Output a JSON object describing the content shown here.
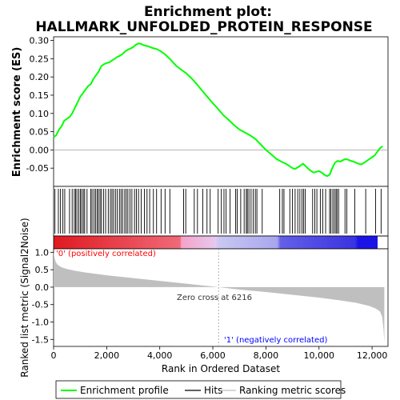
{
  "title_line1": "Enrichment plot:",
  "title_line2": "HALLMARK_UNFOLDED_PROTEIN_RESPONSE",
  "colors": {
    "enrichment": "#00ff00",
    "hits": "#000000",
    "metric_fill": "#bfbfbf",
    "zero_line": "#9e9e9e",
    "pos_label": "#ff0000",
    "neg_label": "#0000ff",
    "bar_red": "#e0191f",
    "bar_pink": "#f4a3c8",
    "bar_lav": "#c9c8f2",
    "bar_blue": "#1c14e6"
  },
  "chart_data": [
    {
      "type": "line",
      "panel": "enrichment",
      "ylabel": "Enrichment score (ES)",
      "ylim": [
        -0.1,
        0.31
      ],
      "xlim": [
        0,
        12600
      ],
      "yticks": [
        "0.30",
        "0.25",
        "0.20",
        "0.15",
        "0.10",
        "0.05",
        "0.00",
        "-0.05"
      ],
      "ytick_values": [
        0.3,
        0.25,
        0.2,
        0.15,
        0.1,
        0.05,
        0.0,
        -0.05
      ],
      "series": [
        {
          "name": "Enrichment profile",
          "x": [
            0,
            100,
            200,
            300,
            400,
            500,
            600,
            700,
            800,
            900,
            1000,
            1100,
            1200,
            1300,
            1400,
            1500,
            1600,
            1700,
            1800,
            1900,
            2000,
            2100,
            2200,
            2300,
            2400,
            2500,
            2600,
            2700,
            2800,
            2900,
            3000,
            3100,
            3200,
            3300,
            3400,
            3500,
            3600,
            3700,
            3800,
            3900,
            4000,
            4200,
            4400,
            4600,
            4800,
            5000,
            5200,
            5400,
            5600,
            5800,
            6000,
            6200,
            6400,
            6600,
            6800,
            7000,
            7200,
            7400,
            7600,
            7800,
            8000,
            8200,
            8400,
            8600,
            8700,
            8800,
            8900,
            9000,
            9100,
            9200,
            9300,
            9400,
            9500,
            9600,
            9700,
            9800,
            9900,
            10000,
            10100,
            10200,
            10300,
            10400,
            10500,
            10600,
            10700,
            10800,
            10900,
            11000,
            11100,
            11200,
            11300,
            11400,
            11500,
            11600,
            11700,
            11800,
            11900,
            12000,
            12100,
            12200,
            12300,
            12400
          ],
          "y": [
            0.035,
            0.04,
            0.055,
            0.065,
            0.08,
            0.085,
            0.09,
            0.1,
            0.115,
            0.13,
            0.145,
            0.155,
            0.165,
            0.175,
            0.18,
            0.195,
            0.205,
            0.215,
            0.23,
            0.235,
            0.238,
            0.24,
            0.245,
            0.25,
            0.255,
            0.258,
            0.263,
            0.27,
            0.275,
            0.278,
            0.282,
            0.288,
            0.292,
            0.29,
            0.287,
            0.285,
            0.283,
            0.28,
            0.278,
            0.276,
            0.272,
            0.262,
            0.248,
            0.232,
            0.22,
            0.21,
            0.196,
            0.18,
            0.162,
            0.145,
            0.128,
            0.112,
            0.095,
            0.082,
            0.068,
            0.056,
            0.048,
            0.04,
            0.03,
            0.015,
            0.0,
            -0.012,
            -0.025,
            -0.033,
            -0.036,
            -0.04,
            -0.045,
            -0.05,
            -0.052,
            -0.048,
            -0.043,
            -0.038,
            -0.045,
            -0.052,
            -0.058,
            -0.062,
            -0.06,
            -0.058,
            -0.062,
            -0.068,
            -0.072,
            -0.068,
            -0.05,
            -0.035,
            -0.03,
            -0.032,
            -0.028,
            -0.025,
            -0.027,
            -0.03,
            -0.032,
            -0.035,
            -0.038,
            -0.04,
            -0.035,
            -0.03,
            -0.025,
            -0.02,
            -0.015,
            -0.005,
            0.005,
            0.01
          ]
        }
      ]
    },
    {
      "type": "scatter",
      "panel": "hits",
      "series": [
        {
          "name": "Hits",
          "x": [
            50,
            180,
            260,
            350,
            420,
            600,
            700,
            780,
            830,
            880,
            950,
            1010,
            1060,
            1120,
            1170,
            1260,
            1400,
            1450,
            1520,
            1580,
            1640,
            1690,
            1750,
            1800,
            1880,
            1960,
            2060,
            2140,
            2200,
            2260,
            2330,
            2400,
            2480,
            2540,
            2600,
            2680,
            2740,
            2800,
            2880,
            2950,
            3050,
            3120,
            3200,
            3300,
            3420,
            3520,
            3620,
            3760,
            3880,
            4050,
            4200,
            4380,
            4900,
            4980,
            5300,
            5420,
            5620,
            5780,
            5900,
            6200,
            6320,
            6420,
            6500,
            6650,
            6860,
            6920,
            7050,
            7180,
            7260,
            7300,
            7360,
            7440,
            7520,
            7600,
            7660,
            7860,
            8520,
            8620,
            8680,
            8900,
            9000,
            9100,
            9200,
            9280,
            9360,
            9420,
            9480,
            9760,
            9840,
            9920,
            10050,
            10140,
            10250,
            10400,
            10450,
            10520,
            10580,
            10640,
            10680,
            10740,
            10980,
            11050,
            11350,
            11760,
            12130,
            12340
          ]
        }
      ]
    },
    {
      "type": "area",
      "panel": "ranked-metric",
      "ylabel": "Ranked list metric (Signal2Noise)",
      "xlabel": "Rank in Ordered Dataset",
      "xlim": [
        0,
        12600
      ],
      "ylim": [
        -1.7,
        1.1
      ],
      "xticks": [
        "0",
        "2,000",
        "4,000",
        "6,000",
        "8,000",
        "10,000",
        "12,000"
      ],
      "xtick_values": [
        0,
        2000,
        4000,
        6000,
        8000,
        10000,
        12000
      ],
      "yticks": [
        "1.0",
        "0.5",
        "0.0",
        "-0.5",
        "-1.0",
        "-1.5"
      ],
      "ytick_values": [
        1.0,
        0.5,
        0.0,
        -0.5,
        -1.0,
        -1.5
      ],
      "series": [
        {
          "name": "Ranking metric scores",
          "x": [
            0,
            30,
            80,
            150,
            300,
            500,
            800,
            1200,
            2000,
            3000,
            4000,
            5000,
            6216,
            7000,
            8000,
            9000,
            10000,
            10800,
            11400,
            11900,
            12150,
            12300,
            12380,
            12430,
            12460
          ],
          "y": [
            1.02,
            0.85,
            0.72,
            0.64,
            0.57,
            0.52,
            0.47,
            0.42,
            0.34,
            0.26,
            0.18,
            0.1,
            0.0,
            -0.07,
            -0.14,
            -0.22,
            -0.3,
            -0.38,
            -0.45,
            -0.54,
            -0.62,
            -0.7,
            -0.85,
            -1.2,
            -1.58
          ]
        }
      ],
      "zero_cross_label": "Zero cross at 6216",
      "zero_cross": 6216,
      "pos_label": "'0' (positively correlated)",
      "neg_label": "'1' (negatively correlated)"
    }
  ],
  "legend": {
    "enrichment": "Enrichment profile",
    "hits": "Hits",
    "metric": "Ranking metric scores"
  }
}
